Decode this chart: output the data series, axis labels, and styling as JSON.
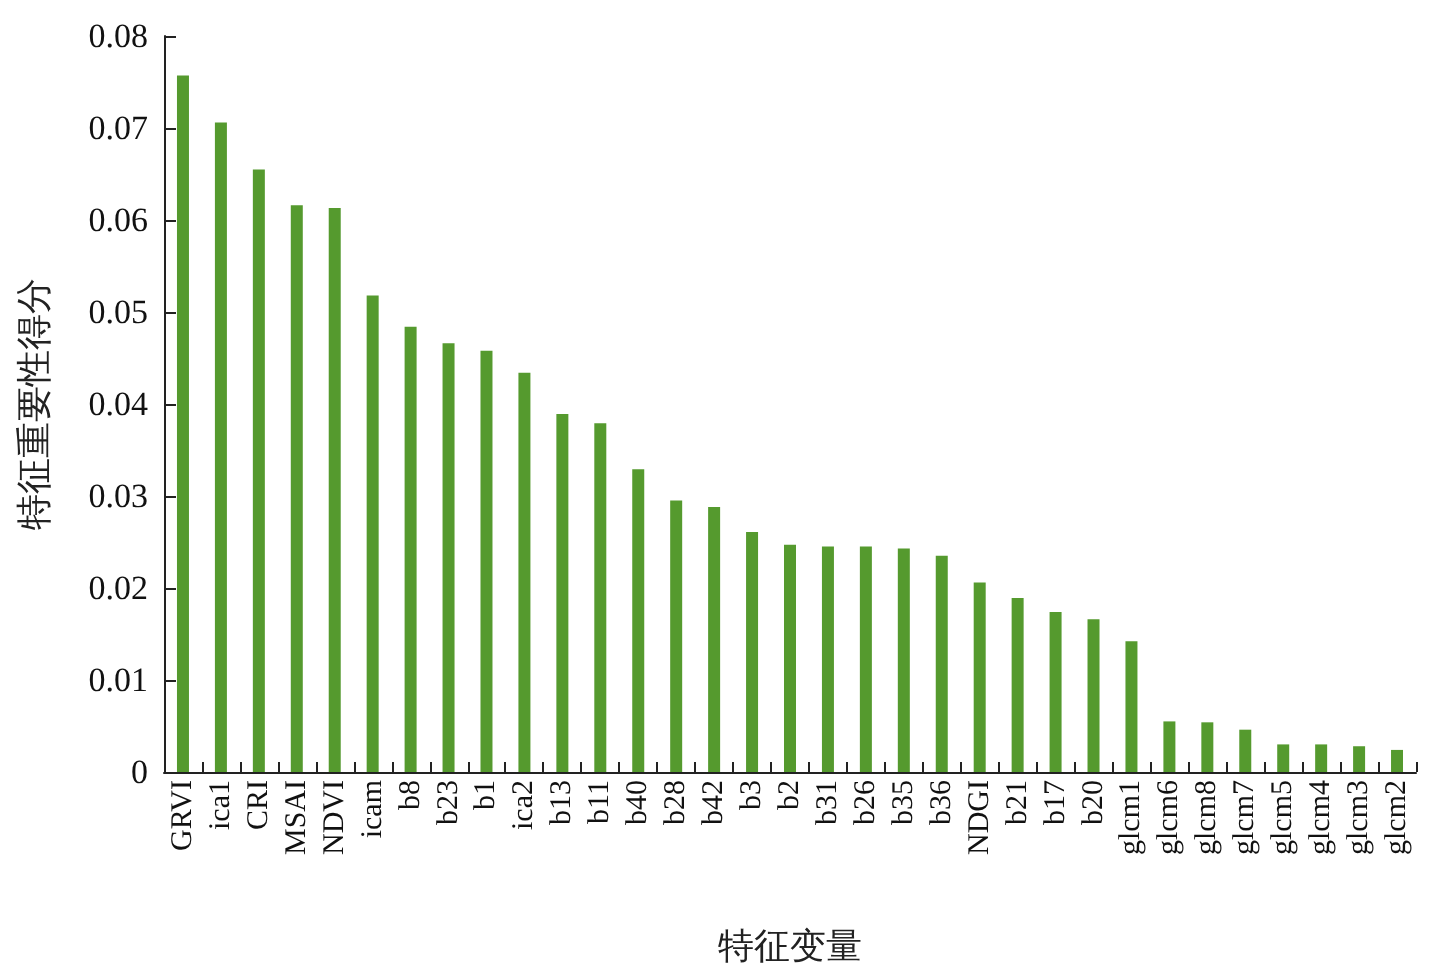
{
  "chart_data": {
    "type": "bar",
    "xlabel": "特征变量",
    "ylabel": "特征重要性得分",
    "categories": [
      "GRVI",
      "ica1",
      "CRI",
      "MSAI",
      "NDVI",
      "icam",
      "b8",
      "b23",
      "b1",
      "ica2",
      "b13",
      "b11",
      "b40",
      "b28",
      "b42",
      "b3",
      "b2",
      "b31",
      "b26",
      "b35",
      "b36",
      "NDGI",
      "b21",
      "b17",
      "b20",
      "glcm1",
      "glcm6",
      "glcm8",
      "glcm7",
      "glcm5",
      "glcm4",
      "glcm3",
      "glcm2"
    ],
    "values": [
      0.0757,
      0.0706,
      0.0655,
      0.0616,
      0.0613,
      0.0518,
      0.0484,
      0.0466,
      0.0458,
      0.0434,
      0.0389,
      0.0379,
      0.0329,
      0.0295,
      0.0288,
      0.0261,
      0.0247,
      0.0245,
      0.0245,
      0.0243,
      0.0235,
      0.0206,
      0.0189,
      0.0174,
      0.0166,
      0.0142,
      0.0055,
      0.0054,
      0.0046,
      0.003,
      0.003,
      0.0028,
      0.0024
    ],
    "color": "#559a2e",
    "ylim": [
      0,
      0.08
    ],
    "yticks": [
      0,
      0.01,
      0.02,
      0.03,
      0.04,
      0.05,
      0.06,
      0.07,
      0.08
    ],
    "grid": false
  }
}
